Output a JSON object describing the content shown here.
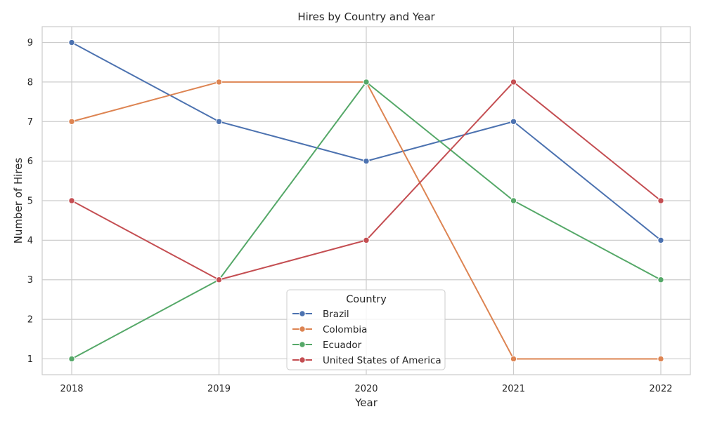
{
  "chart_data": {
    "type": "line",
    "title": "Hires by Country and Year",
    "xlabel": "Year",
    "ylabel": "Number of Hires",
    "x": [
      "2018",
      "2019",
      "2020",
      "2021",
      "2022"
    ],
    "y_ticks": [
      "1",
      "2",
      "3",
      "4",
      "5",
      "6",
      "7",
      "8",
      "9"
    ],
    "ylim": [
      0.6,
      9.4
    ],
    "grid": true,
    "legend": {
      "title": "Country",
      "placement": "bottom-center"
    },
    "series": [
      {
        "name": "Brazil",
        "color": "#4c72b0",
        "values": [
          9,
          7,
          6,
          7,
          4
        ]
      },
      {
        "name": "Colombia",
        "color": "#dd8452",
        "values": [
          7,
          8,
          8,
          1,
          1
        ]
      },
      {
        "name": "Ecuador",
        "color": "#55a868",
        "values": [
          1,
          3,
          8,
          5,
          3
        ]
      },
      {
        "name": "United States of America",
        "color": "#c44e52",
        "values": [
          5,
          3,
          4,
          8,
          5
        ]
      }
    ]
  }
}
